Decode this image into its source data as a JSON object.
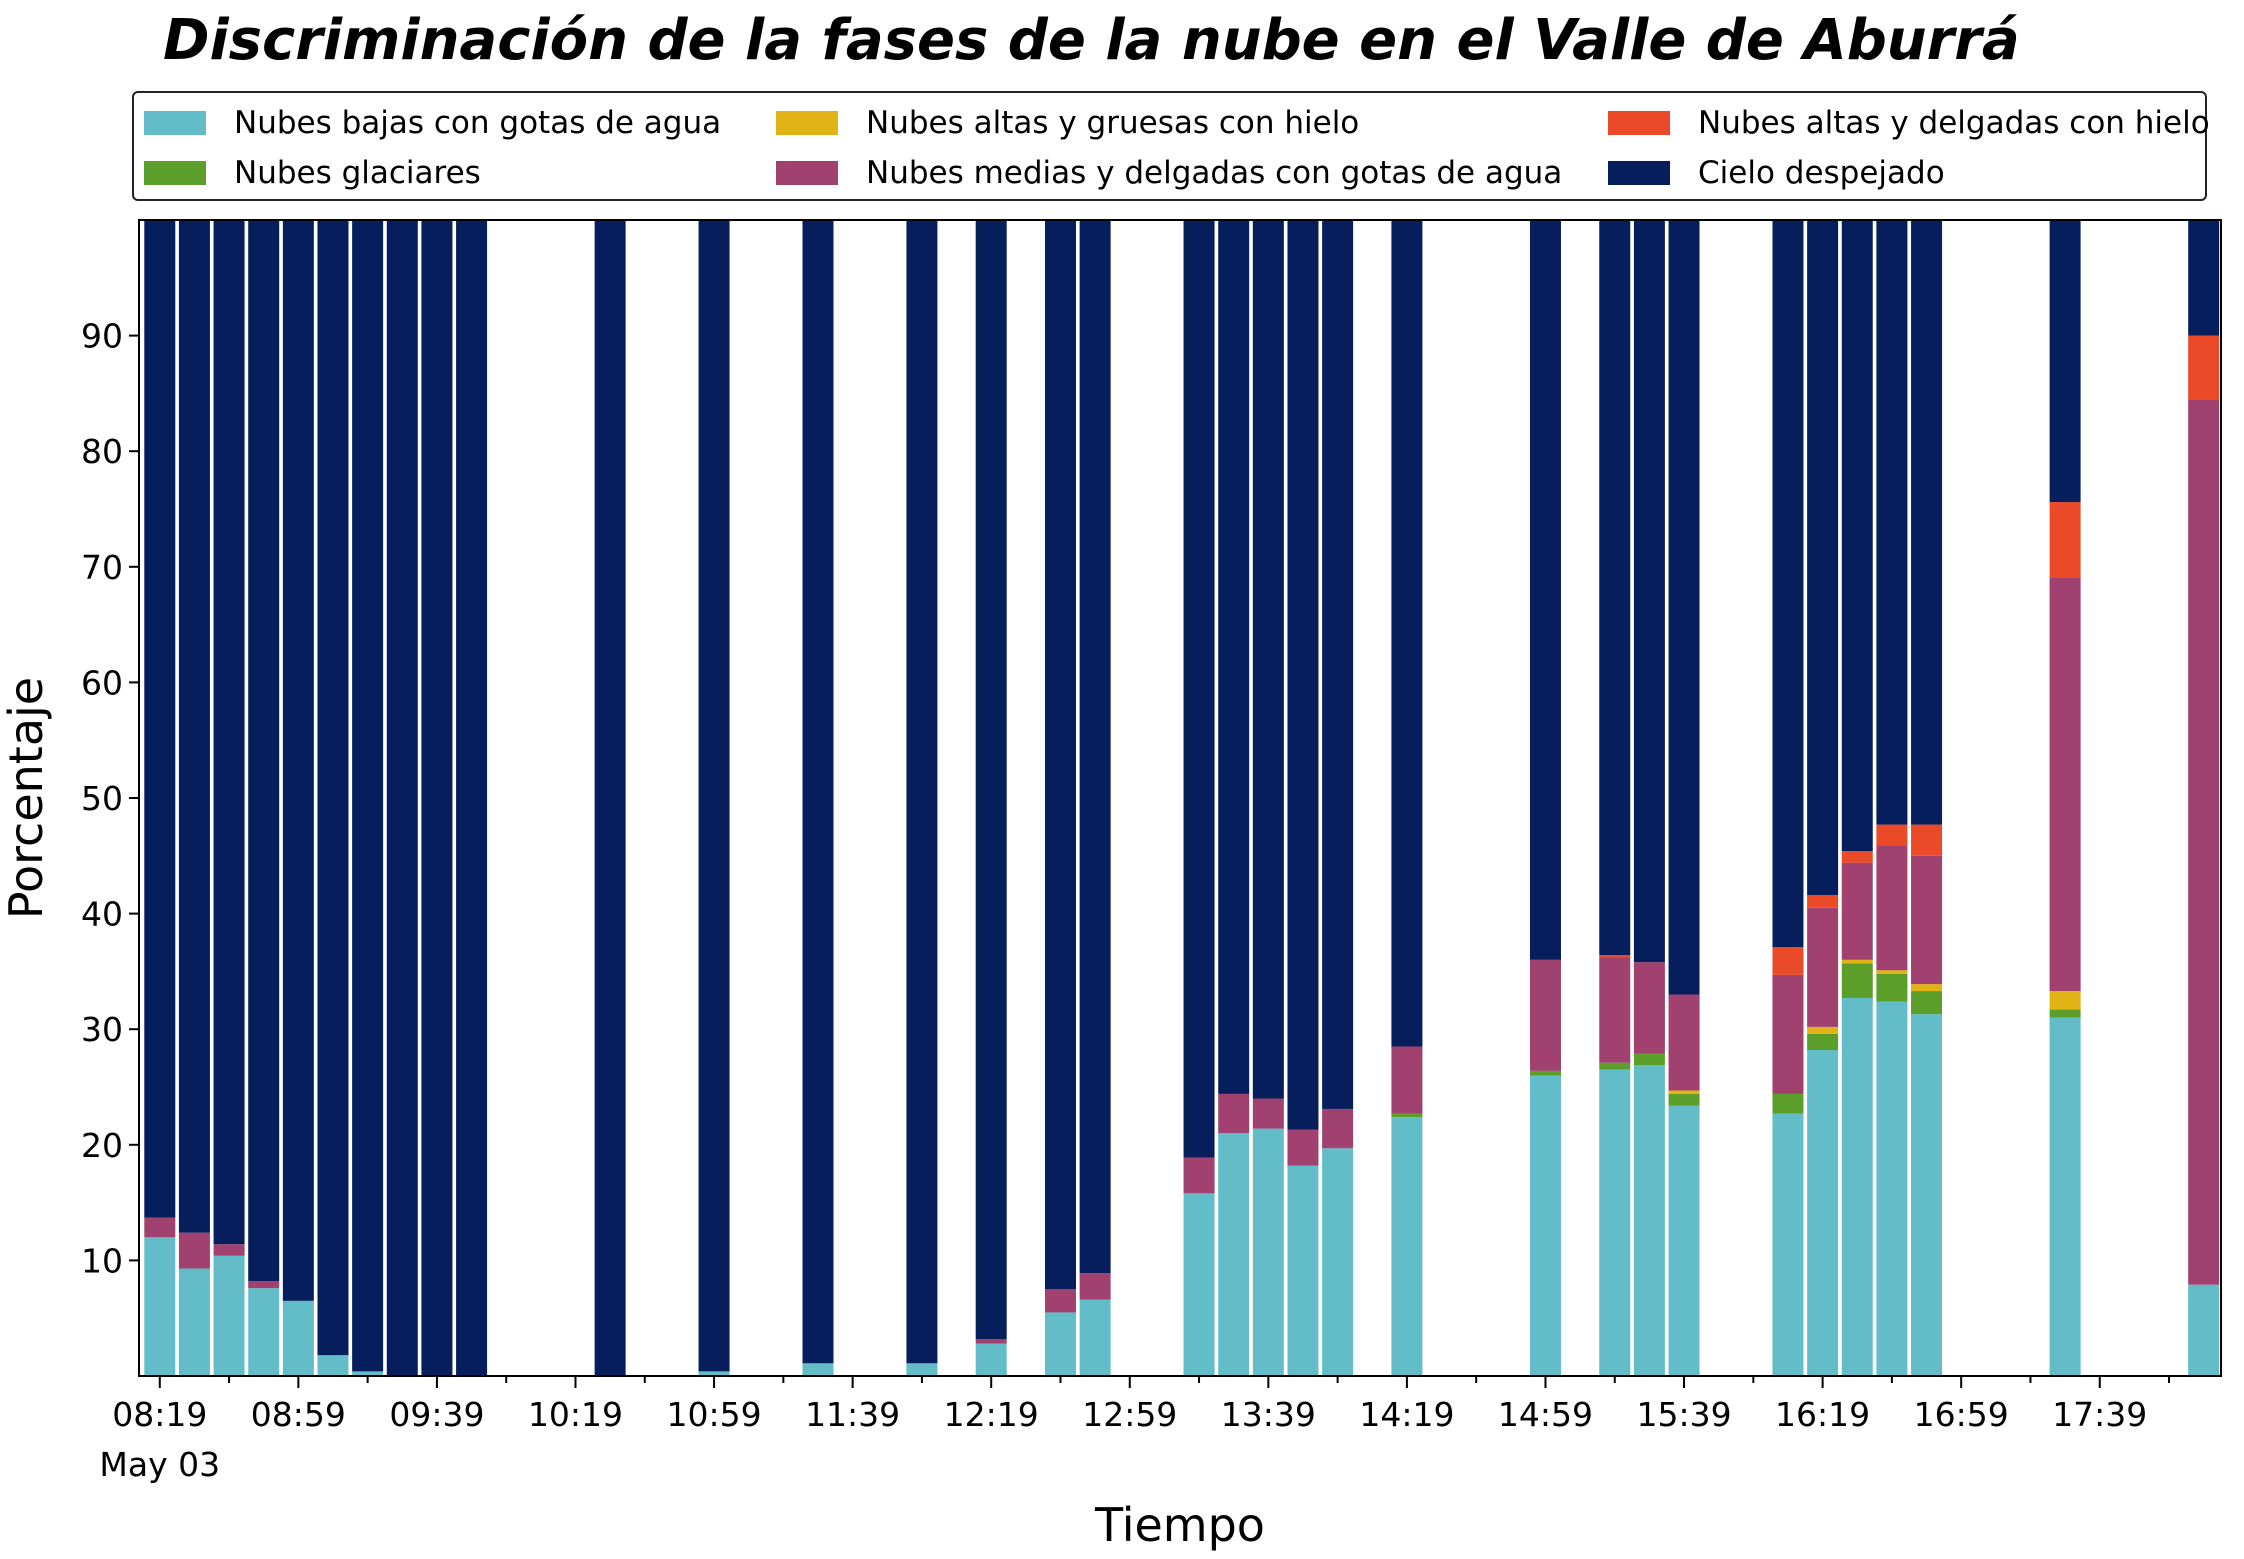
{
  "chart_data": {
    "type": "bar",
    "stacked": true,
    "title": "Discriminación de la fases de la nube en el Valle de Aburrá",
    "xlabel": "Tiempo",
    "ylabel": "Porcentaje",
    "ylim": [
      0,
      100
    ],
    "yticks": [
      10,
      20,
      30,
      40,
      50,
      60,
      70,
      80,
      90
    ],
    "xticks": [
      "08:19",
      "08:59",
      "09:39",
      "10:19",
      "10:59",
      "11:39",
      "12:19",
      "12:59",
      "13:39",
      "14:19",
      "14:59",
      "15:39",
      "16:19",
      "16:59",
      "17:39"
    ],
    "x_date_label": "May 03",
    "legend_position": "top",
    "grid": false,
    "series": [
      {
        "name": "Nubes bajas con gotas de agua",
        "color": "#63bdc8"
      },
      {
        "name": "Nubes glaciares",
        "color": "#5c9e2a"
      },
      {
        "name": "Nubes altas y gruesas con hielo",
        "color": "#e2b316"
      },
      {
        "name": "Nubes medias y delgadas con gotas de agua",
        "color": "#a0416f"
      },
      {
        "name": "Nubes altas y delgadas con hielo",
        "color": "#eb4a28"
      },
      {
        "name": "Cielo despejado",
        "color": "#061f5c"
      }
    ],
    "bars": [
      {
        "t": "08:19",
        "values": [
          12.0,
          0,
          0,
          1.7,
          0,
          86.3
        ]
      },
      {
        "t": "08:29",
        "values": [
          9.3,
          0,
          0,
          3.1,
          0,
          87.6
        ]
      },
      {
        "t": "08:39",
        "values": [
          10.4,
          0,
          0,
          1.0,
          0,
          88.6
        ]
      },
      {
        "t": "08:49",
        "values": [
          7.6,
          0,
          0,
          0.6,
          0,
          91.8
        ]
      },
      {
        "t": "08:59",
        "values": [
          6.5,
          0,
          0,
          0,
          0,
          93.5
        ]
      },
      {
        "t": "09:09",
        "values": [
          1.8,
          0,
          0,
          0,
          0,
          98.2
        ]
      },
      {
        "t": "09:19",
        "values": [
          0.4,
          0,
          0,
          0,
          0,
          99.6
        ]
      },
      {
        "t": "09:29",
        "values": [
          0,
          0,
          0,
          0,
          0,
          100
        ]
      },
      {
        "t": "09:39",
        "values": [
          0,
          0,
          0,
          0,
          0,
          100
        ]
      },
      {
        "t": "09:49",
        "values": [
          0,
          0,
          0,
          0,
          0,
          100
        ]
      },
      {
        "t": "10:29",
        "values": [
          0,
          0,
          0,
          0,
          0,
          100
        ]
      },
      {
        "t": "10:59",
        "values": [
          0.4,
          0,
          0,
          0,
          0,
          99.6
        ]
      },
      {
        "t": "11:29",
        "values": [
          1.1,
          0,
          0,
          0,
          0,
          98.9
        ]
      },
      {
        "t": "11:59",
        "values": [
          1.1,
          0,
          0,
          0,
          0,
          98.9
        ]
      },
      {
        "t": "12:19",
        "values": [
          2.8,
          0,
          0,
          0.4,
          0,
          96.8
        ]
      },
      {
        "t": "12:39",
        "values": [
          5.5,
          0,
          0,
          2.0,
          0,
          92.5
        ]
      },
      {
        "t": "12:49",
        "values": [
          6.6,
          0,
          0,
          2.3,
          0,
          91.1
        ]
      },
      {
        "t": "13:19",
        "values": [
          15.8,
          0,
          0,
          3.1,
          0,
          81.1
        ]
      },
      {
        "t": "13:29",
        "values": [
          21.0,
          0,
          0,
          3.4,
          0,
          75.6
        ]
      },
      {
        "t": "13:39",
        "values": [
          21.4,
          0,
          0,
          2.6,
          0,
          76.0
        ]
      },
      {
        "t": "13:49",
        "values": [
          18.2,
          0,
          0,
          3.1,
          0,
          78.7
        ]
      },
      {
        "t": "13:59",
        "values": [
          19.7,
          0,
          0,
          3.4,
          0,
          76.9
        ]
      },
      {
        "t": "14:19",
        "values": [
          22.4,
          0.3,
          0,
          5.8,
          0,
          71.5
        ]
      },
      {
        "t": "14:59",
        "values": [
          26.0,
          0.4,
          0,
          9.6,
          0,
          64.0
        ]
      },
      {
        "t": "15:19",
        "values": [
          26.5,
          0.6,
          0,
          9.1,
          0.2,
          63.6
        ]
      },
      {
        "t": "15:29",
        "values": [
          26.9,
          1.0,
          0,
          7.9,
          0,
          64.2
        ]
      },
      {
        "t": "15:39",
        "values": [
          23.4,
          1.0,
          0.3,
          8.3,
          0,
          67.0
        ]
      },
      {
        "t": "16:09",
        "values": [
          22.7,
          1.7,
          0,
          10.3,
          2.4,
          62.9
        ]
      },
      {
        "t": "16:19",
        "values": [
          28.2,
          1.4,
          0.6,
          10.3,
          1.1,
          58.4
        ]
      },
      {
        "t": "16:29",
        "values": [
          32.7,
          3.0,
          0.3,
          8.4,
          1.0,
          54.6
        ]
      },
      {
        "t": "16:39",
        "values": [
          32.4,
          2.4,
          0.3,
          10.8,
          1.8,
          52.3
        ]
      },
      {
        "t": "16:49",
        "values": [
          31.3,
          2.0,
          0.6,
          11.1,
          2.7,
          52.3
        ]
      },
      {
        "t": "17:29",
        "values": [
          31.0,
          0.7,
          1.6,
          35.8,
          6.5,
          24.4
        ]
      },
      {
        "t": "18:09",
        "values": [
          7.9,
          0,
          0,
          76.6,
          5.5,
          10.0
        ]
      }
    ]
  }
}
